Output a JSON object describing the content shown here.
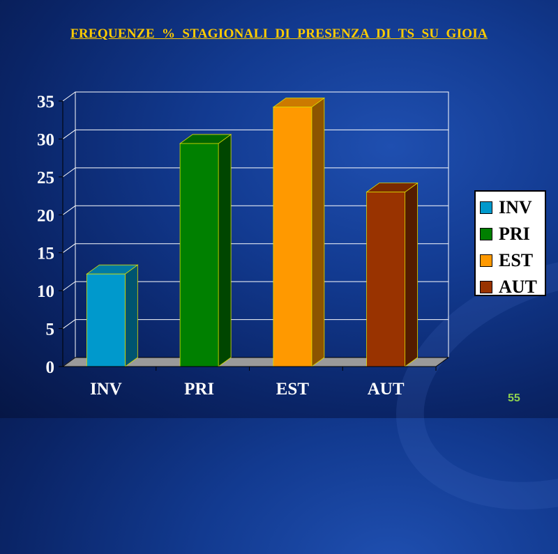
{
  "slide": {
    "page_number": "55"
  },
  "chart_data": {
    "type": "bar",
    "title": "FREQUENZE  %  STAGIONALI  DI  PRESENZA  DI  TS  SU  GIOIA",
    "xlabel": "",
    "ylabel": "",
    "categories": [
      "INV",
      "PRI",
      "EST",
      "AUT"
    ],
    "values": [
      12.2,
      29.4,
      34.2,
      23
    ],
    "colors": [
      "#0099cc",
      "#008000",
      "#ff9900",
      "#993300"
    ],
    "ylim": [
      0,
      35
    ],
    "yticks": [
      "0",
      "5",
      "10",
      "15",
      "20",
      "25",
      "30",
      "35"
    ],
    "grid": true,
    "legend": {
      "placement": "right",
      "entries": [
        "INV",
        "PRI",
        "EST",
        "AUT"
      ]
    }
  }
}
